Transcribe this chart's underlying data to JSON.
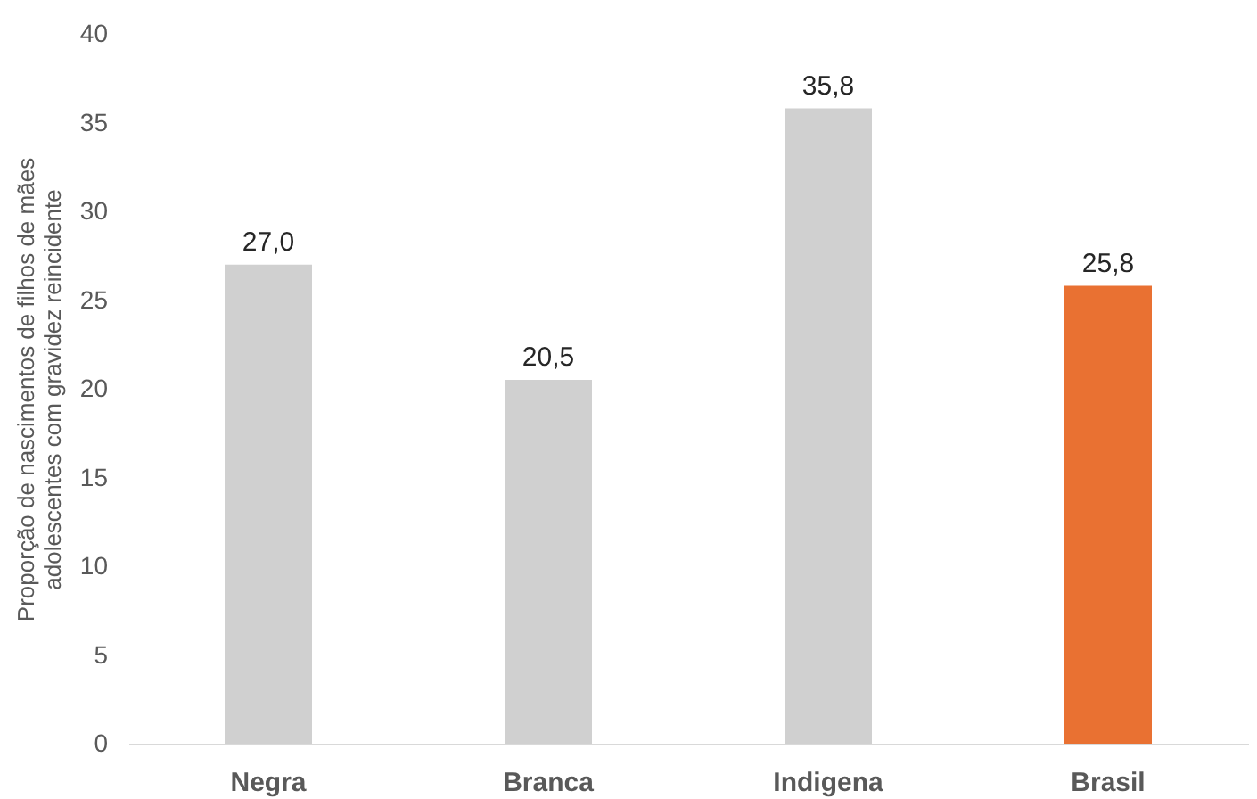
{
  "chart_data": {
    "type": "bar",
    "ylabel": "Proporção de nascimentos de filhos de mães\nadolescentes com gravidez reincidente",
    "categories": [
      "Negra",
      "Branca",
      "Indigena",
      "Brasil"
    ],
    "values": [
      27.0,
      20.5,
      35.8,
      25.8
    ],
    "value_labels": [
      "27,0",
      "20,5",
      "35,8",
      "25,8"
    ],
    "colors": [
      "#d0d0d0",
      "#d0d0d0",
      "#d0d0d0",
      "#e97132"
    ],
    "ylim": [
      0,
      40
    ],
    "yticks": [
      0,
      5,
      10,
      15,
      20,
      25,
      30,
      35,
      40
    ],
    "grid": false
  }
}
